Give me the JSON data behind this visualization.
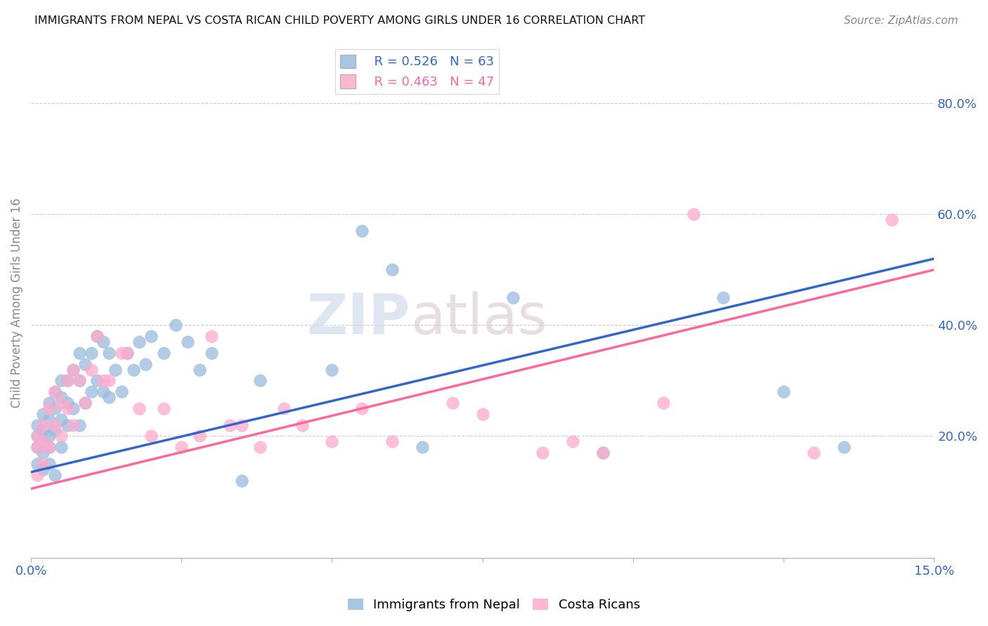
{
  "title": "IMMIGRANTS FROM NEPAL VS COSTA RICAN CHILD POVERTY AMONG GIRLS UNDER 16 CORRELATION CHART",
  "source": "Source: ZipAtlas.com",
  "ylabel": "Child Poverty Among Girls Under 16",
  "xlim": [
    0.0,
    0.15
  ],
  "ylim": [
    -0.02,
    0.9
  ],
  "xticks": [
    0.0,
    0.025,
    0.05,
    0.075,
    0.1,
    0.125,
    0.15
  ],
  "xtick_labels": [
    "0.0%",
    "",
    "",
    "",
    "",
    "",
    "15.0%"
  ],
  "ytick_labels": [
    "20.0%",
    "40.0%",
    "60.0%",
    "80.0%"
  ],
  "ytick_positions": [
    0.2,
    0.4,
    0.6,
    0.8
  ],
  "legend1_r": "R = 0.526",
  "legend1_n": "N = 63",
  "legend2_r": "R = 0.463",
  "legend2_n": "N = 47",
  "blue_color": "#99BBDD",
  "pink_color": "#FFAACC",
  "blue_line_color": "#3366CC",
  "pink_line_color": "#FF6699",
  "blue_line_x0": 0.0,
  "blue_line_y0": 0.135,
  "blue_line_x1": 0.15,
  "blue_line_y1": 0.52,
  "pink_line_x0": 0.0,
  "pink_line_y0": 0.105,
  "pink_line_x1": 0.15,
  "pink_line_y1": 0.5,
  "blue_scatter_x": [
    0.001,
    0.001,
    0.001,
    0.001,
    0.002,
    0.002,
    0.002,
    0.002,
    0.002,
    0.003,
    0.003,
    0.003,
    0.003,
    0.003,
    0.004,
    0.004,
    0.004,
    0.004,
    0.005,
    0.005,
    0.005,
    0.005,
    0.006,
    0.006,
    0.006,
    0.007,
    0.007,
    0.008,
    0.008,
    0.008,
    0.009,
    0.009,
    0.01,
    0.01,
    0.011,
    0.011,
    0.012,
    0.012,
    0.013,
    0.013,
    0.014,
    0.015,
    0.016,
    0.017,
    0.018,
    0.019,
    0.02,
    0.022,
    0.024,
    0.026,
    0.028,
    0.03,
    0.035,
    0.038,
    0.05,
    0.055,
    0.06,
    0.065,
    0.08,
    0.095,
    0.115,
    0.125,
    0.135
  ],
  "blue_scatter_y": [
    0.22,
    0.2,
    0.18,
    0.15,
    0.24,
    0.21,
    0.19,
    0.17,
    0.14,
    0.26,
    0.23,
    0.2,
    0.18,
    0.15,
    0.28,
    0.25,
    0.21,
    0.13,
    0.3,
    0.27,
    0.23,
    0.18,
    0.3,
    0.26,
    0.22,
    0.32,
    0.25,
    0.35,
    0.3,
    0.22,
    0.33,
    0.26,
    0.35,
    0.28,
    0.38,
    0.3,
    0.37,
    0.28,
    0.35,
    0.27,
    0.32,
    0.28,
    0.35,
    0.32,
    0.37,
    0.33,
    0.38,
    0.35,
    0.4,
    0.37,
    0.32,
    0.35,
    0.12,
    0.3,
    0.32,
    0.57,
    0.5,
    0.18,
    0.45,
    0.17,
    0.45,
    0.28,
    0.18
  ],
  "pink_scatter_x": [
    0.001,
    0.001,
    0.001,
    0.002,
    0.002,
    0.002,
    0.003,
    0.003,
    0.004,
    0.004,
    0.005,
    0.005,
    0.006,
    0.006,
    0.007,
    0.007,
    0.008,
    0.009,
    0.01,
    0.011,
    0.012,
    0.013,
    0.015,
    0.016,
    0.018,
    0.02,
    0.022,
    0.025,
    0.028,
    0.03,
    0.033,
    0.035,
    0.038,
    0.042,
    0.045,
    0.05,
    0.055,
    0.06,
    0.07,
    0.075,
    0.085,
    0.09,
    0.095,
    0.105,
    0.11,
    0.13,
    0.143
  ],
  "pink_scatter_y": [
    0.2,
    0.18,
    0.13,
    0.22,
    0.19,
    0.15,
    0.25,
    0.18,
    0.28,
    0.22,
    0.26,
    0.2,
    0.3,
    0.25,
    0.32,
    0.22,
    0.3,
    0.26,
    0.32,
    0.38,
    0.3,
    0.3,
    0.35,
    0.35,
    0.25,
    0.2,
    0.25,
    0.18,
    0.2,
    0.38,
    0.22,
    0.22,
    0.18,
    0.25,
    0.22,
    0.19,
    0.25,
    0.19,
    0.26,
    0.24,
    0.17,
    0.19,
    0.17,
    0.26,
    0.6,
    0.17,
    0.59
  ]
}
